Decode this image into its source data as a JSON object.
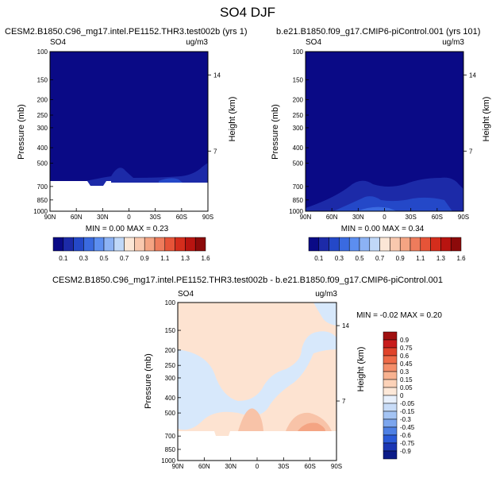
{
  "page_title": "SO4 DJF",
  "chart_data": [
    {
      "type": "contour",
      "panel": "top-left",
      "title": "CESM2.B1850.C96_mg17.intel.PE1152.THR3.test002b (yrs 1)",
      "variable": "SO4",
      "units": "ug/m3",
      "stats": "MIN =  0.00  MAX =  0.23",
      "ylabel": "Pressure (mb)",
      "ylabel_right": "Height (km)",
      "x_ticks": [
        "90N",
        "60N",
        "30N",
        "0",
        "30S",
        "60S",
        "90S"
      ],
      "y_ticks": [
        "100",
        "150",
        "200",
        "250",
        "300",
        "400",
        "500",
        "700",
        "850",
        "1000"
      ],
      "height_ticks": [
        "14",
        "7"
      ],
      "min": 0.0,
      "max": 0.23
    },
    {
      "type": "contour",
      "panel": "top-right",
      "title": "b.e21.B1850.f09_g17.CMIP6-piControl.001 (yrs 101)",
      "variable": "SO4",
      "units": "ug/m3",
      "stats": "MIN =  0.00  MAX =  0.34",
      "ylabel": "Pressure (mb)",
      "ylabel_right": "Height (km)",
      "x_ticks": [
        "90N",
        "60N",
        "30N",
        "0",
        "30S",
        "60S",
        "90S"
      ],
      "y_ticks": [
        "100",
        "150",
        "200",
        "250",
        "300",
        "400",
        "500",
        "700",
        "850",
        "1000"
      ],
      "height_ticks": [
        "14",
        "7"
      ],
      "min": 0.0,
      "max": 0.34
    },
    {
      "type": "contour",
      "panel": "bottom",
      "title": "CESM2.B1850.C96_mg17.intel.PE1152.THR3.test002b - b.e21.B1850.f09_g17.CMIP6-piControl.001",
      "variable": "SO4",
      "units": "ug/m3",
      "stats": "MIN = -0.02  MAX =  0.20",
      "ylabel": "Pressure (mb)",
      "ylabel_right": "Height (km)",
      "x_ticks": [
        "90N",
        "60N",
        "30N",
        "0",
        "30S",
        "60S",
        "90S"
      ],
      "y_ticks": [
        "100",
        "150",
        "200",
        "250",
        "300",
        "400",
        "500",
        "700",
        "850",
        "1000"
      ],
      "height_ticks": [
        "14",
        "7"
      ],
      "min": -0.02,
      "max": 0.2
    }
  ],
  "colorbar_top": {
    "labels": [
      "0.1",
      "0.3",
      "0.5",
      "0.7",
      "0.9",
      "1.1",
      "1.3",
      "1.6"
    ],
    "colors": [
      "#0a0a86",
      "#1c2aa8",
      "#2448c8",
      "#3a6ae0",
      "#5c8ef0",
      "#8cb2f4",
      "#c0d8f8",
      "#fbe6d6",
      "#f9c8ae",
      "#f4a483",
      "#ee7c5c",
      "#e65438",
      "#d42d1c",
      "#b81410",
      "#8c0a0a"
    ]
  },
  "colorbar_diff": {
    "labels": [
      "0.9",
      "0.75",
      "0.6",
      "0.45",
      "0.3",
      "0.15",
      "0.05",
      "0",
      "-0.05",
      "-0.15",
      "-0.3",
      "-0.45",
      "-0.6",
      "-0.75",
      "-0.9"
    ],
    "colors": [
      "#a01010",
      "#c81c1c",
      "#e0432a",
      "#ee6a48",
      "#f48e6a",
      "#f8b290",
      "#fcd2b8",
      "#fde8d8",
      "#e8f0fc",
      "#c8dcf8",
      "#a4c4f4",
      "#7ca6ee",
      "#4e80e4",
      "#2a5ad8",
      "#1a36b4",
      "#0c1c88"
    ]
  },
  "colors": {
    "dark_blue": "#0a0a86",
    "mid_blue": "#1c2aa8",
    "light_blue_fill": "#2448c8",
    "diff_peach": "#fde3d1",
    "diff_lightblue": "#d7e8fb",
    "diff_orange": "#f8c3a8"
  }
}
